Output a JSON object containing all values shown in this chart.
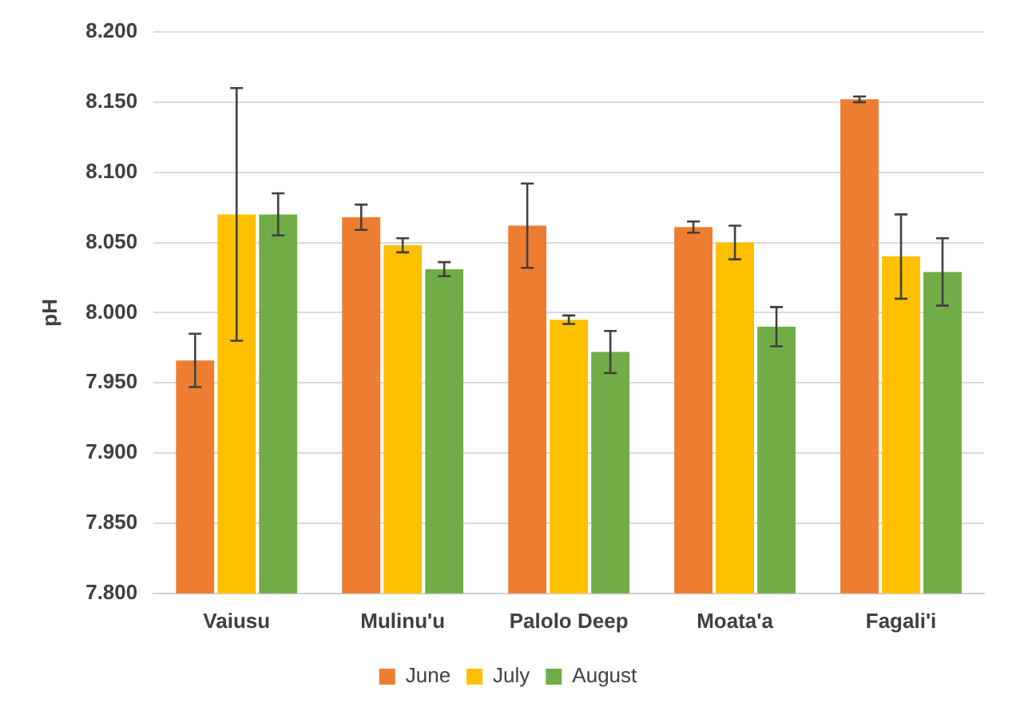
{
  "chart_data": {
    "type": "bar",
    "ylabel": "pH",
    "categories": [
      "Vaiusu",
      "Mulinu'u",
      "Palolo Deep",
      "Moata'a",
      "Fagali'i"
    ],
    "series": [
      {
        "name": "June",
        "color": "#ed7d31",
        "values": [
          7.966,
          8.068,
          8.062,
          8.061,
          8.152
        ],
        "errors": [
          0.019,
          0.009,
          0.03,
          0.004,
          0.002
        ]
      },
      {
        "name": "July",
        "color": "#ffc000",
        "values": [
          8.07,
          8.048,
          7.995,
          8.05,
          8.04
        ],
        "errors": [
          0.09,
          0.005,
          0.003,
          0.012,
          0.03
        ]
      },
      {
        "name": "August",
        "color": "#70ad47",
        "values": [
          8.07,
          8.031,
          7.972,
          7.99,
          8.029
        ],
        "errors": [
          0.015,
          0.005,
          0.015,
          0.014,
          0.024
        ]
      }
    ],
    "ylim": [
      7.8,
      8.2
    ],
    "yticks": [
      {
        "value": 7.8,
        "label": "7.800"
      },
      {
        "value": 7.85,
        "label": "7.850"
      },
      {
        "value": 7.9,
        "label": "7.900"
      },
      {
        "value": 7.95,
        "label": "7.950"
      },
      {
        "value": 8.0,
        "label": "8.000"
      },
      {
        "value": 8.05,
        "label": "8.050"
      },
      {
        "value": 8.1,
        "label": "8.100"
      },
      {
        "value": 8.15,
        "label": "8.150"
      },
      {
        "value": 8.2,
        "label": "8.200"
      }
    ],
    "grid": "y",
    "legend": "bottom"
  }
}
